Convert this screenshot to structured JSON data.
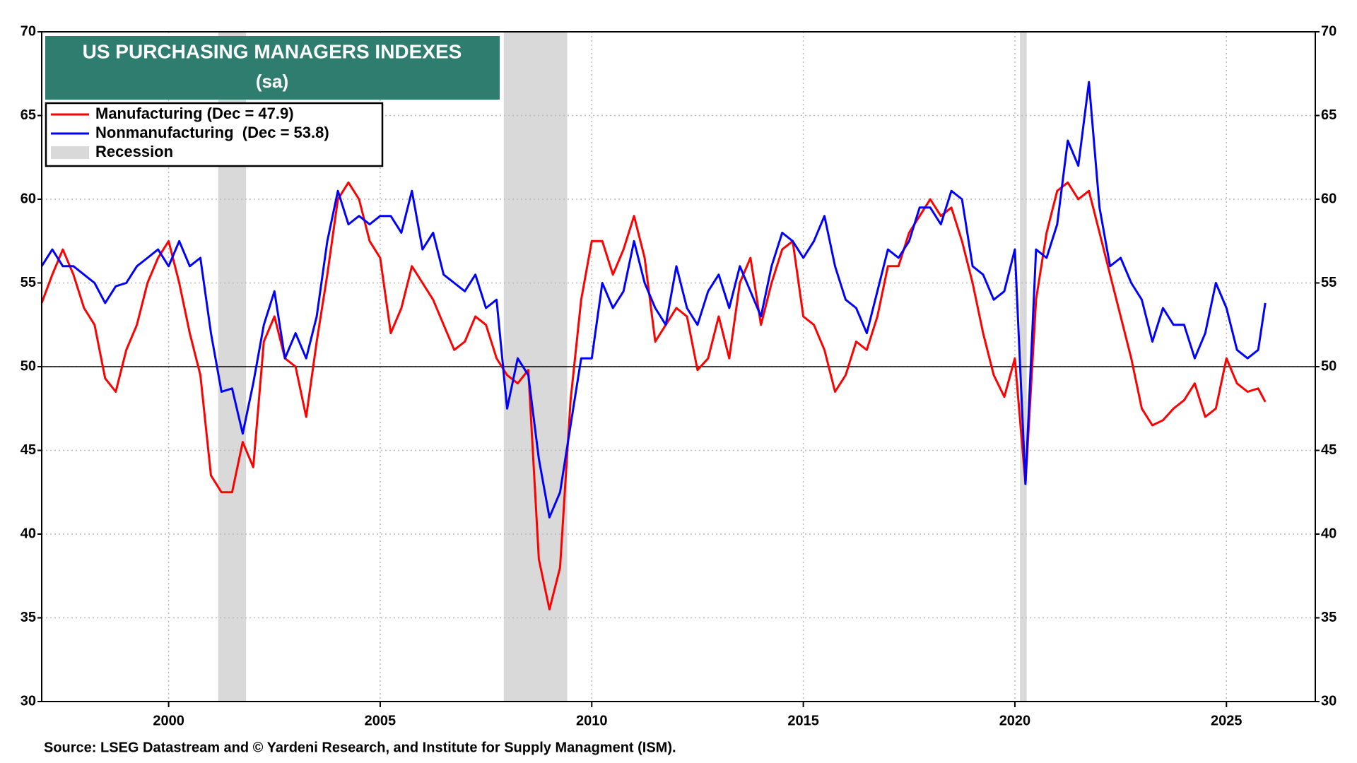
{
  "chart_data": {
    "type": "line",
    "title": "US PURCHASING MANAGERS INDEXES",
    "subtitle": "(sa)",
    "source": "Source: LSEG Datastream and © Yardeni Research, and Institute for Supply Managment (ISM).",
    "x": [
      1997,
      1997.25,
      1997.5,
      1997.75,
      1998,
      1998.25,
      1998.5,
      1998.75,
      1999,
      1999.25,
      1999.5,
      1999.75,
      2000,
      2000.25,
      2000.5,
      2000.75,
      2001,
      2001.25,
      2001.5,
      2001.75,
      2002,
      2002.25,
      2002.5,
      2002.75,
      2003,
      2003.25,
      2003.5,
      2003.75,
      2004,
      2004.25,
      2004.5,
      2004.75,
      2005,
      2005.25,
      2005.5,
      2005.75,
      2006,
      2006.25,
      2006.5,
      2006.75,
      2007,
      2007.25,
      2007.5,
      2007.75,
      2008,
      2008.25,
      2008.5,
      2008.75,
      2009,
      2009.25,
      2009.5,
      2009.75,
      2010,
      2010.25,
      2010.5,
      2010.75,
      2011,
      2011.25,
      2011.5,
      2011.75,
      2012,
      2012.25,
      2012.5,
      2012.75,
      2013,
      2013.25,
      2013.5,
      2013.75,
      2014,
      2014.25,
      2014.5,
      2014.75,
      2015,
      2015.25,
      2015.5,
      2015.75,
      2016,
      2016.25,
      2016.5,
      2016.75,
      2017,
      2017.25,
      2017.5,
      2017.75,
      2018,
      2018.25,
      2018.5,
      2018.75,
      2019,
      2019.25,
      2019.5,
      2019.75,
      2020,
      2020.25,
      2020.5,
      2020.75,
      2021,
      2021.25,
      2021.5,
      2021.75,
      2022,
      2022.25,
      2022.5,
      2022.75,
      2023,
      2023.25,
      2023.5,
      2023.75,
      2024,
      2024.25,
      2024.5,
      2024.75,
      2025,
      2025.25,
      2025.5,
      2025.75,
      2025.917
    ],
    "series": [
      {
        "name": "Manufacturing (Dec = 47.9)",
        "color": "#ff0000",
        "values": [
          53.8,
          55.5,
          57,
          55.5,
          53.5,
          52.5,
          49.3,
          48.5,
          51,
          52.5,
          55,
          56.5,
          57.5,
          55,
          52,
          49.5,
          43.5,
          42.5,
          42.5,
          45.5,
          44,
          51.5,
          53,
          50.5,
          50,
          47,
          51.5,
          55.5,
          60,
          61,
          60,
          57.5,
          56.5,
          52,
          53.5,
          56,
          55,
          54,
          52.5,
          51,
          51.5,
          53,
          52.5,
          50.5,
          49.5,
          49,
          49.8,
          38.5,
          35.5,
          38,
          48,
          54,
          57.5,
          57.5,
          55.5,
          57,
          59,
          56.5,
          51.5,
          52.5,
          53.5,
          53,
          49.8,
          50.5,
          53,
          50.5,
          55,
          56.5,
          52.5,
          55,
          57,
          57.5,
          53,
          52.5,
          51,
          48.5,
          49.5,
          51.5,
          51,
          53,
          56,
          56,
          58,
          59,
          60,
          59,
          59.5,
          57.5,
          55,
          52,
          49.5,
          48.2,
          50.5,
          43,
          54,
          58,
          60.5,
          61,
          60,
          60.5,
          58,
          55.5,
          53,
          50.5,
          47.5,
          46.5,
          46.8,
          47.5,
          48,
          49,
          47,
          47.5,
          50.5,
          49,
          48.5,
          48.7,
          47.9
        ]
      },
      {
        "name": "Nonmanufacturing  (Dec = 53.8)",
        "color": "#0000ff",
        "values": [
          56,
          57,
          56,
          56,
          55.5,
          55,
          53.8,
          54.8,
          55,
          56,
          56.5,
          57,
          56,
          57.5,
          56,
          56.5,
          52,
          48.5,
          48.7,
          46,
          49,
          52.5,
          54.5,
          50.5,
          52,
          50.5,
          53,
          57.5,
          60.5,
          58.5,
          59,
          58.5,
          59,
          59,
          58,
          60.5,
          57,
          58,
          55.5,
          55,
          54.5,
          55.5,
          53.5,
          54,
          47.5,
          50.5,
          49.5,
          44.5,
          41,
          42.5,
          46.5,
          50.5,
          50.5,
          55,
          53.5,
          54.5,
          57.5,
          55,
          53.5,
          52.5,
          56,
          53.5,
          52.5,
          54.5,
          55.5,
          53.5,
          56,
          54.5,
          53,
          56,
          58,
          57.5,
          56.5,
          57.5,
          59,
          56,
          54,
          53.5,
          52,
          54.5,
          57,
          56.5,
          57.5,
          59.5,
          59.5,
          58.5,
          60.5,
          60,
          56,
          55.5,
          54,
          54.5,
          57,
          43,
          57,
          56.5,
          58.5,
          63.5,
          62,
          67,
          59.5,
          56,
          56.5,
          55,
          54,
          51.5,
          53.5,
          52.5,
          52.5,
          50.5,
          52,
          55,
          53.5,
          51,
          50.5,
          51,
          53.8
        ]
      }
    ],
    "recession_label": "Recession",
    "recession_color": "#d9d9d9",
    "recessions": [
      [
        2001.17,
        2001.83
      ],
      [
        2007.92,
        2009.42
      ],
      [
        2020.12,
        2020.28
      ]
    ],
    "reference_line": 50,
    "xlim": [
      1997,
      2027.1
    ],
    "xticks": [
      2000,
      2005,
      2010,
      2015,
      2020,
      2025
    ],
    "ylim": [
      30,
      70
    ],
    "yticks": [
      30,
      35,
      40,
      45,
      50,
      55,
      60,
      65,
      70
    ],
    "y2lim": [
      30,
      70
    ],
    "y2ticks": [
      30,
      35,
      40,
      45,
      50,
      55,
      60,
      65,
      70
    ],
    "grid": true,
    "legend": "top-left",
    "title_background": "#2e7d6f"
  }
}
